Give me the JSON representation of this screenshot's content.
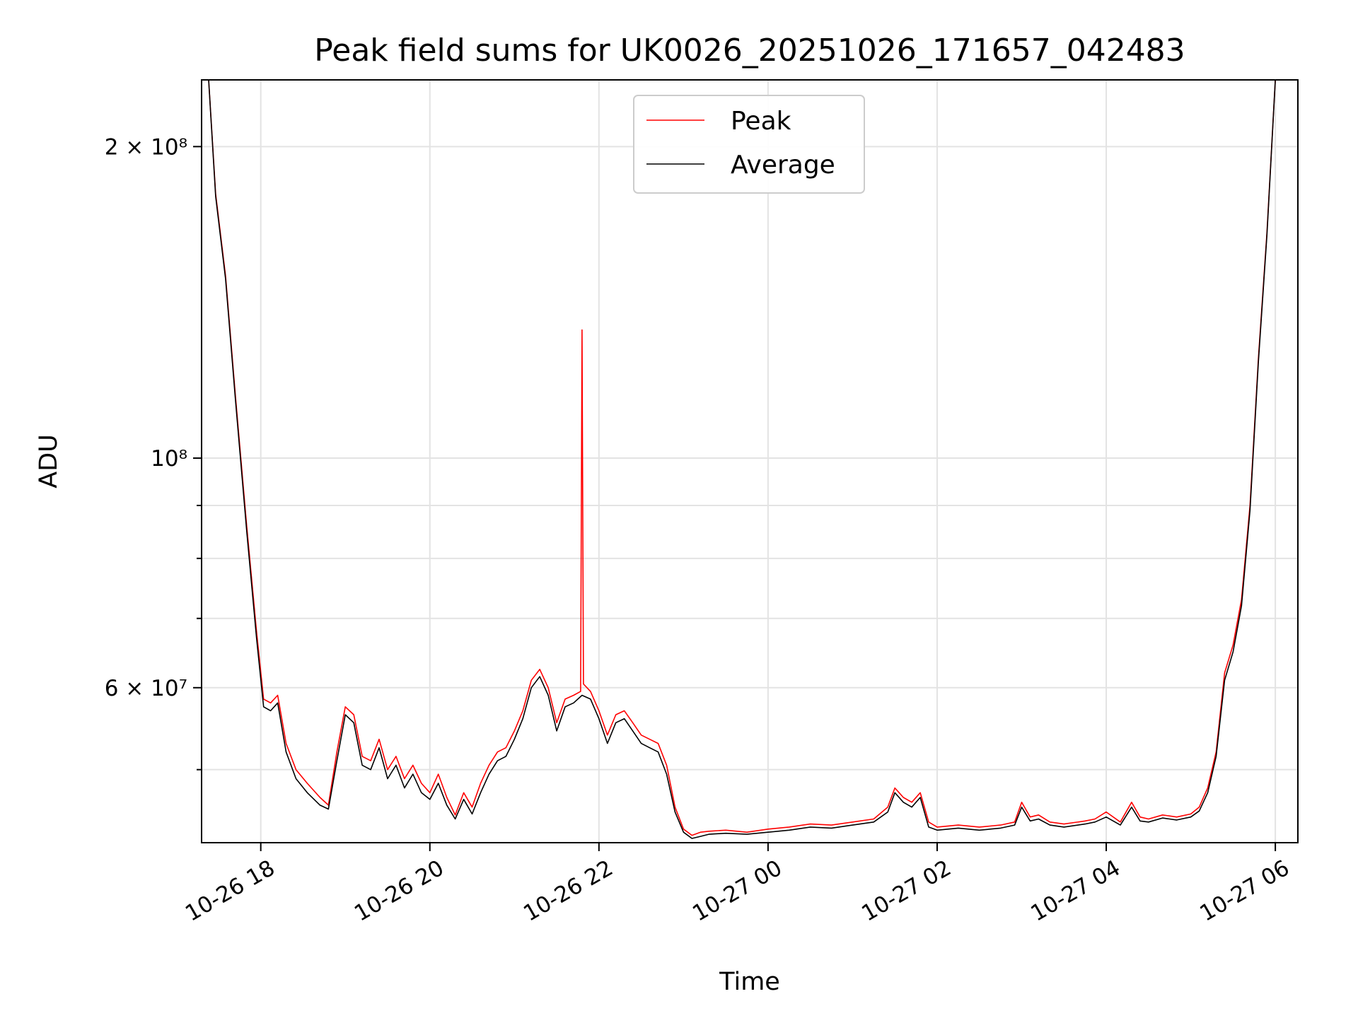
{
  "chart_data": {
    "type": "line",
    "title": "Peak field sums for UK0026_20251026_171657_042483",
    "xlabel": "Time",
    "ylabel": "ADU",
    "yscale": "log",
    "ylim": [
      42500000,
      232000000
    ],
    "xlim": [
      "2025-10-26T17:18",
      "2025-10-27T06:16"
    ],
    "grid": true,
    "legend": "top-center",
    "x_ticks": [
      {
        "t": "2025-10-26T18:00",
        "label": "10-26 18"
      },
      {
        "t": "2025-10-26T20:00",
        "label": "10-26 20"
      },
      {
        "t": "2025-10-26T22:00",
        "label": "10-26 22"
      },
      {
        "t": "2025-10-27T00:00",
        "label": "10-27 00"
      },
      {
        "t": "2025-10-27T02:00",
        "label": "10-27 02"
      },
      {
        "t": "2025-10-27T04:00",
        "label": "10-27 04"
      },
      {
        "t": "2025-10-27T06:00",
        "label": "10-27 06"
      }
    ],
    "y_major_ticks": [
      {
        "v": 200000000,
        "label": "2 × 10⁸"
      },
      {
        "v": 100000000,
        "label": "10⁸"
      },
      {
        "v": 60000000,
        "label": "6 × 10⁷"
      }
    ],
    "y_minor_ticks": [
      50000000,
      70000000,
      80000000,
      90000000
    ],
    "series": [
      {
        "name": "Peak",
        "color": "#ff0000",
        "x": [
          "2025-10-26T17:23",
          "2025-10-26T17:28",
          "2025-10-26T17:35",
          "2025-10-26T17:42",
          "2025-10-26T17:50",
          "2025-10-26T17:57",
          "2025-10-26T18:02",
          "2025-10-26T18:07",
          "2025-10-26T18:12",
          "2025-10-26T18:18",
          "2025-10-26T18:25",
          "2025-10-26T18:33",
          "2025-10-26T18:42",
          "2025-10-26T18:48",
          "2025-10-26T18:54",
          "2025-10-26T19:00",
          "2025-10-26T19:06",
          "2025-10-26T19:12",
          "2025-10-26T19:18",
          "2025-10-26T19:24",
          "2025-10-26T19:30",
          "2025-10-26T19:36",
          "2025-10-26T19:42",
          "2025-10-26T19:48",
          "2025-10-26T19:54",
          "2025-10-26T20:00",
          "2025-10-26T20:06",
          "2025-10-26T20:12",
          "2025-10-26T20:18",
          "2025-10-26T20:24",
          "2025-10-26T20:30",
          "2025-10-26T20:36",
          "2025-10-26T20:42",
          "2025-10-26T20:48",
          "2025-10-26T20:54",
          "2025-10-26T21:00",
          "2025-10-26T21:06",
          "2025-10-26T21:12",
          "2025-10-26T21:18",
          "2025-10-26T21:24",
          "2025-10-26T21:30",
          "2025-10-26T21:36",
          "2025-10-26T21:42",
          "2025-10-26T21:47",
          "2025-10-26T21:48",
          "2025-10-26T21:49",
          "2025-10-26T21:54",
          "2025-10-26T22:00",
          "2025-10-26T22:06",
          "2025-10-26T22:12",
          "2025-10-26T22:18",
          "2025-10-26T22:24",
          "2025-10-26T22:30",
          "2025-10-26T22:36",
          "2025-10-26T22:42",
          "2025-10-26T22:48",
          "2025-10-26T22:54",
          "2025-10-26T23:00",
          "2025-10-26T23:06",
          "2025-10-26T23:12",
          "2025-10-26T23:18",
          "2025-10-26T23:30",
          "2025-10-26T23:45",
          "2025-10-27T00:00",
          "2025-10-27T00:15",
          "2025-10-27T00:30",
          "2025-10-27T00:45",
          "2025-10-27T01:00",
          "2025-10-27T01:15",
          "2025-10-27T01:25",
          "2025-10-27T01:30",
          "2025-10-27T01:36",
          "2025-10-27T01:42",
          "2025-10-27T01:48",
          "2025-10-27T01:54",
          "2025-10-27T02:00",
          "2025-10-27T02:15",
          "2025-10-27T02:30",
          "2025-10-27T02:45",
          "2025-10-27T02:55",
          "2025-10-27T03:00",
          "2025-10-27T03:06",
          "2025-10-27T03:12",
          "2025-10-27T03:20",
          "2025-10-27T03:30",
          "2025-10-27T03:45",
          "2025-10-27T03:52",
          "2025-10-27T04:00",
          "2025-10-27T04:10",
          "2025-10-27T04:18",
          "2025-10-27T04:24",
          "2025-10-27T04:30",
          "2025-10-27T04:40",
          "2025-10-27T04:50",
          "2025-10-27T05:00",
          "2025-10-27T05:06",
          "2025-10-27T05:12",
          "2025-10-27T05:18",
          "2025-10-27T05:24",
          "2025-10-27T05:30",
          "2025-10-27T05:36",
          "2025-10-27T05:42",
          "2025-10-27T05:48",
          "2025-10-27T05:54",
          "2025-10-27T06:00"
        ],
        "values": [
          232000000,
          180000000,
          150000000,
          115000000,
          86000000,
          68000000,
          58500000,
          58000000,
          59000000,
          53000000,
          50000000,
          48500000,
          47000000,
          46200000,
          52000000,
          57500000,
          56500000,
          51500000,
          51000000,
          53500000,
          50000000,
          51500000,
          49000000,
          50500000,
          48500000,
          47500000,
          49500000,
          47000000,
          45200000,
          47500000,
          46000000,
          48500000,
          50500000,
          52000000,
          52500000,
          54500000,
          57000000,
          61000000,
          62500000,
          60000000,
          55500000,
          58500000,
          59000000,
          59500000,
          133000000,
          60500000,
          59500000,
          57000000,
          54000000,
          56500000,
          57000000,
          55500000,
          54000000,
          53500000,
          53000000,
          50500000,
          46000000,
          43800000,
          43200000,
          43500000,
          43600000,
          43700000,
          43500000,
          43800000,
          44000000,
          44300000,
          44200000,
          44500000,
          44800000,
          46000000,
          48000000,
          47000000,
          46500000,
          47500000,
          44500000,
          44000000,
          44200000,
          44000000,
          44200000,
          44500000,
          46500000,
          45000000,
          45200000,
          44500000,
          44300000,
          44600000,
          44800000,
          45500000,
          44500000,
          46500000,
          45000000,
          44800000,
          45200000,
          45000000,
          45300000,
          46000000,
          48000000,
          52000000,
          62000000,
          66000000,
          73000000,
          90000000,
          125000000,
          165000000,
          232000000
        ]
      },
      {
        "name": "Average",
        "color": "#000000",
        "x": [
          "2025-10-26T17:23",
          "2025-10-26T17:28",
          "2025-10-26T17:35",
          "2025-10-26T17:42",
          "2025-10-26T17:50",
          "2025-10-26T17:57",
          "2025-10-26T18:02",
          "2025-10-26T18:07",
          "2025-10-26T18:12",
          "2025-10-26T18:18",
          "2025-10-26T18:25",
          "2025-10-26T18:33",
          "2025-10-26T18:42",
          "2025-10-26T18:48",
          "2025-10-26T18:54",
          "2025-10-26T19:00",
          "2025-10-26T19:06",
          "2025-10-26T19:12",
          "2025-10-26T19:18",
          "2025-10-26T19:24",
          "2025-10-26T19:30",
          "2025-10-26T19:36",
          "2025-10-26T19:42",
          "2025-10-26T19:48",
          "2025-10-26T19:54",
          "2025-10-26T20:00",
          "2025-10-26T20:06",
          "2025-10-26T20:12",
          "2025-10-26T20:18",
          "2025-10-26T20:24",
          "2025-10-26T20:30",
          "2025-10-26T20:36",
          "2025-10-26T20:42",
          "2025-10-26T20:48",
          "2025-10-26T20:54",
          "2025-10-26T21:00",
          "2025-10-26T21:06",
          "2025-10-26T21:12",
          "2025-10-26T21:18",
          "2025-10-26T21:24",
          "2025-10-26T21:30",
          "2025-10-26T21:36",
          "2025-10-26T21:42",
          "2025-10-26T21:48",
          "2025-10-26T21:54",
          "2025-10-26T22:00",
          "2025-10-26T22:06",
          "2025-10-26T22:12",
          "2025-10-26T22:18",
          "2025-10-26T22:24",
          "2025-10-26T22:30",
          "2025-10-26T22:36",
          "2025-10-26T22:42",
          "2025-10-26T22:48",
          "2025-10-26T22:54",
          "2025-10-26T23:00",
          "2025-10-26T23:06",
          "2025-10-26T23:12",
          "2025-10-26T23:18",
          "2025-10-26T23:30",
          "2025-10-26T23:45",
          "2025-10-27T00:00",
          "2025-10-27T00:15",
          "2025-10-27T00:30",
          "2025-10-27T00:45",
          "2025-10-27T01:00",
          "2025-10-27T01:15",
          "2025-10-27T01:25",
          "2025-10-27T01:30",
          "2025-10-27T01:36",
          "2025-10-27T01:42",
          "2025-10-27T01:48",
          "2025-10-27T01:54",
          "2025-10-27T02:00",
          "2025-10-27T02:15",
          "2025-10-27T02:30",
          "2025-10-27T02:45",
          "2025-10-27T02:55",
          "2025-10-27T03:00",
          "2025-10-27T03:06",
          "2025-10-27T03:12",
          "2025-10-27T03:20",
          "2025-10-27T03:30",
          "2025-10-27T03:45",
          "2025-10-27T03:52",
          "2025-10-27T04:00",
          "2025-10-27T04:10",
          "2025-10-27T04:18",
          "2025-10-27T04:24",
          "2025-10-27T04:30",
          "2025-10-27T04:40",
          "2025-10-27T04:50",
          "2025-10-27T05:00",
          "2025-10-27T05:06",
          "2025-10-27T05:12",
          "2025-10-27T05:18",
          "2025-10-27T05:24",
          "2025-10-27T05:30",
          "2025-10-27T05:36",
          "2025-10-27T05:42",
          "2025-10-27T05:48",
          "2025-10-27T05:54",
          "2025-10-27T06:00"
        ],
        "values": [
          232000000,
          179000000,
          149000000,
          114000000,
          85000000,
          67000000,
          57500000,
          57000000,
          58000000,
          52000000,
          49000000,
          47500000,
          46200000,
          45800000,
          51000000,
          56500000,
          55500000,
          50500000,
          50000000,
          52500000,
          49000000,
          50500000,
          48000000,
          49500000,
          47500000,
          46800000,
          48500000,
          46200000,
          44800000,
          46800000,
          45300000,
          47500000,
          49500000,
          51000000,
          51500000,
          53500000,
          56000000,
          60000000,
          61500000,
          59000000,
          54500000,
          57500000,
          58000000,
          59000000,
          58500000,
          56000000,
          53000000,
          55500000,
          56000000,
          54500000,
          53000000,
          52500000,
          52000000,
          49500000,
          45500000,
          43500000,
          42900000,
          43100000,
          43300000,
          43400000,
          43300000,
          43500000,
          43700000,
          44000000,
          43900000,
          44200000,
          44500000,
          45500000,
          47500000,
          46500000,
          46000000,
          47000000,
          44000000,
          43700000,
          43900000,
          43700000,
          43900000,
          44200000,
          46000000,
          44600000,
          44800000,
          44200000,
          44000000,
          44300000,
          44500000,
          45000000,
          44200000,
          46000000,
          44600000,
          44500000,
          44900000,
          44700000,
          45000000,
          45600000,
          47500000,
          51500000,
          61000000,
          65000000,
          72000000,
          89000000,
          124000000,
          164000000,
          232000000
        ]
      }
    ]
  }
}
